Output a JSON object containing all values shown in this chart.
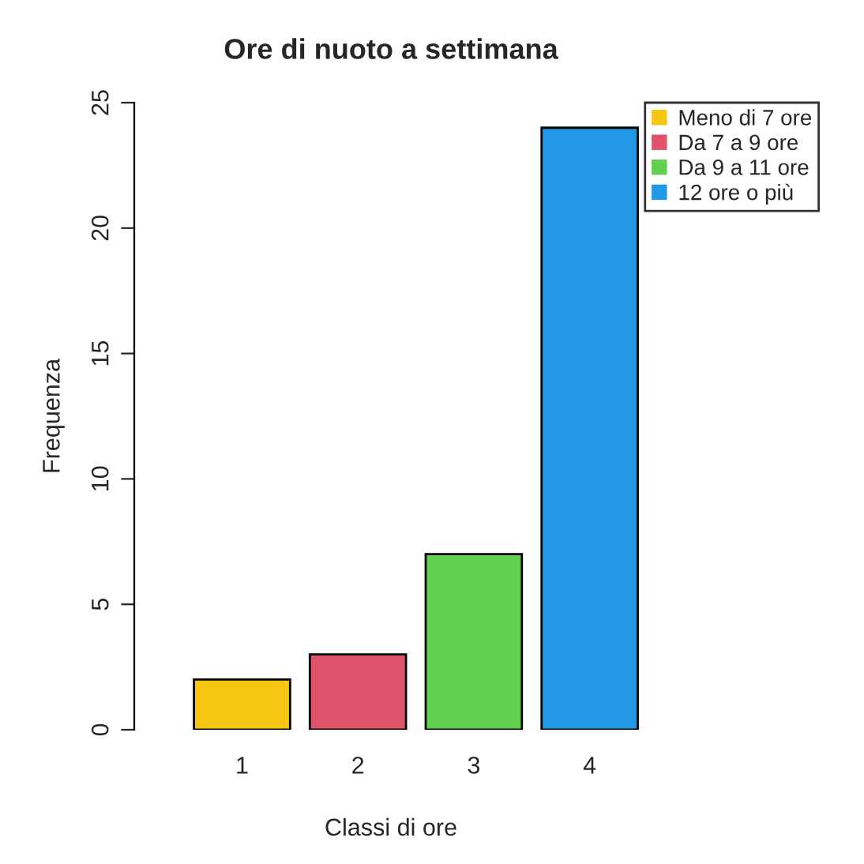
{
  "chart_data": {
    "type": "bar",
    "title": "Ore di nuoto a settimana",
    "xlabel": "Classi di ore",
    "ylabel": "Frequenza",
    "categories": [
      "1",
      "2",
      "3",
      "4"
    ],
    "series": [
      {
        "name": "Meno di 7 ore",
        "color": "#f5c710",
        "values": [
          2,
          null,
          null,
          null
        ]
      },
      {
        "name": "Da 7 a 9 ore",
        "color": "#df536b",
        "values": [
          null,
          3,
          null,
          null
        ]
      },
      {
        "name": "Da 9 a 11 ore",
        "color": "#61d04f",
        "values": [
          null,
          null,
          7,
          null
        ]
      },
      {
        "name": "12 ore o più",
        "color": "#2297e6",
        "values": [
          null,
          null,
          null,
          24
        ]
      }
    ],
    "ylim": [
      0,
      25
    ],
    "yticks": [
      0,
      5,
      10,
      15,
      20,
      25
    ],
    "legend": "top right",
    "grid": false
  }
}
